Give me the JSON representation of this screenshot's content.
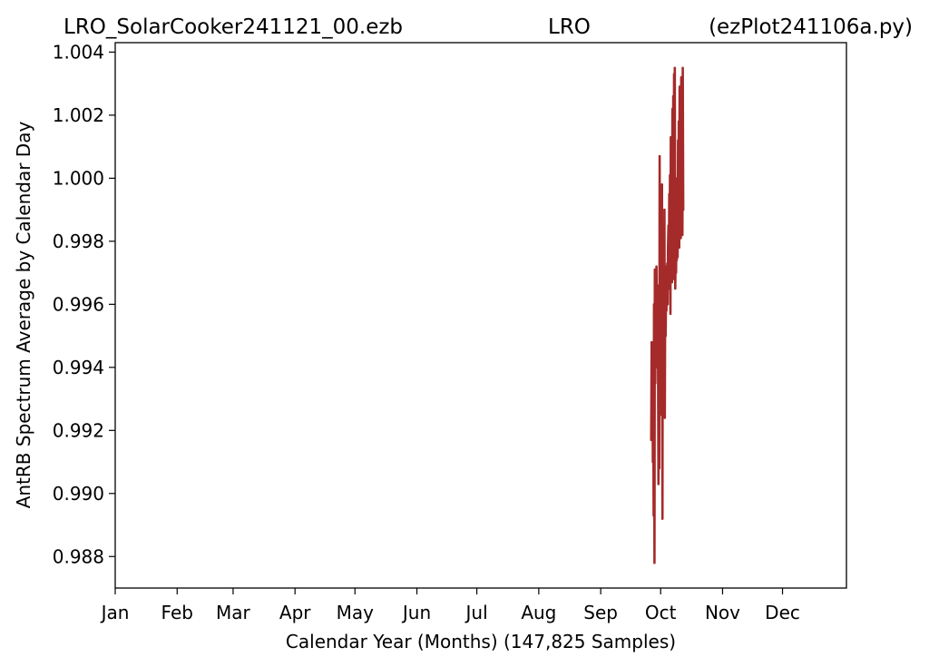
{
  "chart_data": {
    "type": "line",
    "title": {
      "left": "LRO_SolarCooker241121_00.ezb",
      "center": "LRO",
      "right": "(ezPlot241106a.py)"
    },
    "xlabel": "Calendar Year (Months) (147,825 Samples)",
    "ylabel": "AntRB Spectrum Average by Calendar Day",
    "x_unit": "day of year",
    "xlim": [
      1,
      367
    ],
    "ylim": [
      0.987,
      1.0043
    ],
    "x_ticks": [
      {
        "label": "Jan",
        "day": 1
      },
      {
        "label": "Feb",
        "day": 32
      },
      {
        "label": "Mar",
        "day": 60
      },
      {
        "label": "Apr",
        "day": 91
      },
      {
        "label": "May",
        "day": 121
      },
      {
        "label": "Jun",
        "day": 152
      },
      {
        "label": "Jul",
        "day": 182
      },
      {
        "label": "Aug",
        "day": 213
      },
      {
        "label": "Sep",
        "day": 244
      },
      {
        "label": "Oct",
        "day": 274
      },
      {
        "label": "Nov",
        "day": 305
      },
      {
        "label": "Dec",
        "day": 335
      }
    ],
    "y_ticks": [
      "0.988",
      "0.990",
      "0.992",
      "0.994",
      "0.996",
      "0.998",
      "1.000",
      "1.002",
      "1.004"
    ],
    "grid": false,
    "series": [
      {
        "color": "#a52a2a",
        "x": [
          269.3,
          269.5,
          269.7,
          269.9,
          270.1,
          270.3,
          270.5,
          270.7,
          270.9,
          271.1,
          271.3,
          271.5,
          271.7,
          271.9,
          272.1,
          272.3,
          272.5,
          272.7,
          272.9,
          273.1,
          273.3,
          273.5,
          273.7,
          273.9,
          274.1,
          274.3,
          274.5,
          274.7,
          274.9,
          275.1,
          275.3,
          275.5,
          275.7,
          275.9,
          276.1,
          276.3,
          276.5,
          276.7,
          276.9,
          277.1,
          277.3,
          277.5,
          277.7,
          277.9,
          278.1,
          278.3,
          278.5,
          278.7,
          278.9,
          279.1,
          279.3,
          279.5,
          279.7,
          279.9,
          280.1,
          280.3,
          280.5,
          280.7,
          280.9,
          281.1,
          281.3,
          281.5,
          281.7,
          281.9,
          282.1,
          282.3,
          282.5,
          282.7,
          282.9,
          283.1,
          283.3,
          283.5,
          283.7,
          283.9,
          284.1,
          284.3,
          284.5,
          284.7,
          284.9,
          285.1,
          285.3
        ],
        "y": [
          0.9917,
          0.9948,
          0.9918,
          0.9946,
          0.991,
          0.9935,
          0.9893,
          0.996,
          0.9878,
          0.9971,
          0.9935,
          0.9965,
          0.9942,
          0.9972,
          0.9955,
          0.994,
          0.9966,
          0.9945,
          0.9903,
          0.9958,
          0.9908,
          1.0007,
          0.9955,
          0.9995,
          0.9925,
          0.998,
          0.9942,
          0.9998,
          0.9892,
          0.9984,
          0.9945,
          0.997,
          0.9927,
          0.999,
          0.9924,
          0.9972,
          0.995,
          0.9962,
          0.9958,
          0.9968,
          0.9973,
          0.996,
          0.9978,
          0.9985,
          0.9965,
          0.9995,
          0.9972,
          1.0001,
          0.9957,
          1.0013,
          0.9972,
          1.0005,
          0.9967,
          1.0022,
          0.9976,
          1.0026,
          0.9968,
          1.0033,
          0.998,
          1.0035,
          0.9965,
          0.9975,
          0.997,
          0.9985,
          0.9974,
          1.0,
          0.9975,
          1.0012,
          0.9982,
          1.0018,
          0.9978,
          1.0029,
          0.9985,
          1.0024,
          0.9981,
          1.0032,
          0.9987,
          1.0028,
          0.9982,
          1.0035,
          0.999
        ]
      }
    ]
  }
}
